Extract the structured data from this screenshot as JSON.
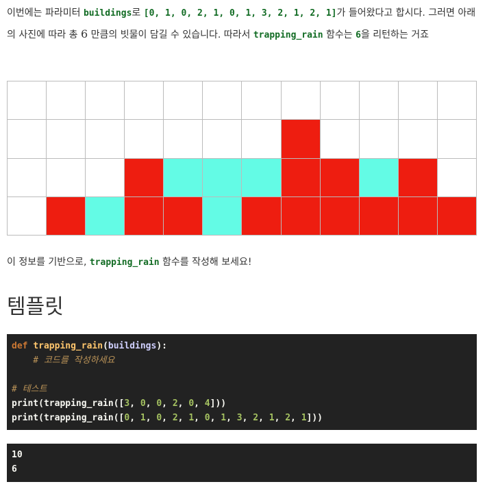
{
  "intro": {
    "t1": "이번에는 파라미터 ",
    "c1": "buildings",
    "t2": "로 ",
    "c2": "[0, 1, 0, 2, 1, 0, 1, 3, 2, 1, 2, 1]",
    "t3": "가 들어왔다고 합시다. 그러면 아래의 사진에 따라 총 ",
    "n1": "6",
    "t4": " 만큼의 빗물이 담길 수 있습니다. 따라서 ",
    "c3": "trapping_rain",
    "t5": " 함수는 ",
    "c4": "6",
    "t6": "을 리턴하는 거죠"
  },
  "diagram": {
    "buildings": [
      0,
      1,
      0,
      2,
      1,
      0,
      1,
      3,
      2,
      1,
      2,
      1
    ],
    "water": [
      0,
      0,
      1,
      0,
      1,
      2,
      1,
      0,
      0,
      1,
      0,
      0
    ],
    "rows": 4,
    "colors": {
      "building": "#ee1d10",
      "water": "#63fbe5",
      "empty": "#ffffff"
    }
  },
  "prompt": {
    "t1": "이 정보를 기반으로, ",
    "c1": "trapping_rain",
    "t2": " 함수를 작성해 보세요!"
  },
  "heading": "템플릿",
  "code": {
    "def_kw": "def",
    "func_name": "trapping_rain",
    "param_open": "(",
    "param": "buildings",
    "param_close": "):",
    "comment1": "    # 코드를 작성하세요",
    "comment2": "# 테스트",
    "print1": {
      "head": "print(trapping_rain([",
      "nums": [
        "3",
        "0",
        "0",
        "2",
        "0",
        "4"
      ],
      "tail": "]))"
    },
    "print2": {
      "head": "print(trapping_rain([",
      "nums": [
        "0",
        "1",
        "0",
        "2",
        "1",
        "0",
        "1",
        "3",
        "2",
        "1",
        "2",
        "1"
      ],
      "tail": "]))"
    }
  },
  "output": [
    "10",
    "6"
  ]
}
